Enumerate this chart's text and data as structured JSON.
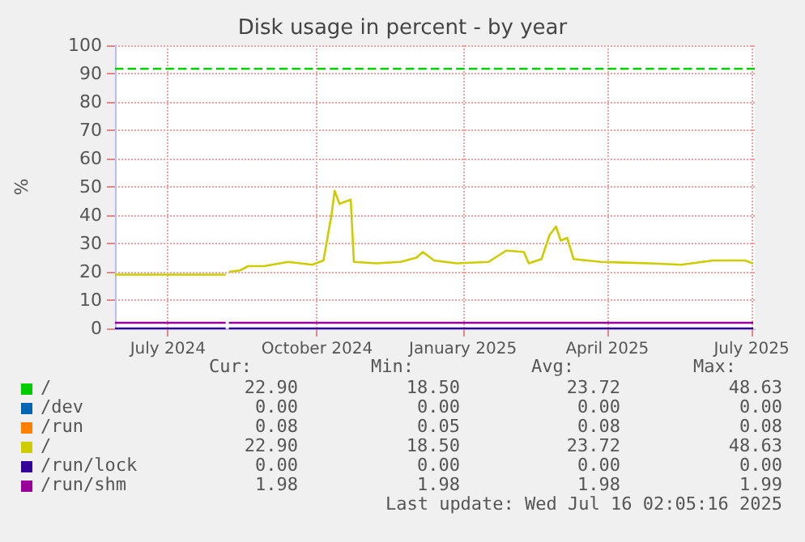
{
  "chart_data": {
    "type": "line",
    "title": "Disk usage in percent - by year",
    "ylabel": "%",
    "x": [
      "2024-06-12",
      "2024-08-20",
      "2024-08-21",
      "2024-08-22",
      "2024-08-29",
      "2024-09-03",
      "2024-09-13",
      "2024-09-28",
      "2024-10-13",
      "2024-10-20",
      "2024-10-25",
      "2024-10-27",
      "2024-10-30",
      "2024-11-06",
      "2024-11-08",
      "2024-11-22",
      "2024-12-07",
      "2024-12-17",
      "2024-12-21",
      "2024-12-28",
      "2025-01-11",
      "2025-01-31",
      "2025-02-11",
      "2025-02-22",
      "2025-02-25",
      "2025-03-05",
      "2025-03-10",
      "2025-03-14",
      "2025-03-17",
      "2025-03-21",
      "2025-03-25",
      "2025-04-11",
      "2025-05-11",
      "2025-05-31",
      "2025-06-20",
      "2025-07-10",
      "2025-07-15"
    ],
    "series": [
      {
        "name": "/",
        "color": "#00cc00",
        "values": [
          null,
          null,
          null,
          null,
          null,
          null,
          null,
          null,
          null,
          null,
          null,
          null,
          null,
          null,
          null,
          null,
          null,
          null,
          null,
          null,
          null,
          null,
          null,
          null,
          null,
          null,
          null,
          null,
          null,
          null,
          null,
          null,
          null,
          null,
          null,
          null,
          null
        ]
      },
      {
        "name": "/dev",
        "color": "#0066b3",
        "values": [
          null,
          null,
          null,
          null,
          null,
          null,
          null,
          null,
          null,
          null,
          null,
          null,
          null,
          null,
          null,
          null,
          null,
          null,
          null,
          null,
          null,
          null,
          null,
          null,
          null,
          null,
          null,
          null,
          null,
          null,
          null,
          null,
          null,
          null,
          null,
          null,
          null
        ]
      },
      {
        "name": "/run",
        "color": "#ff8000",
        "values": [
          null,
          null,
          null,
          null,
          null,
          null,
          null,
          null,
          null,
          null,
          null,
          null,
          null,
          null,
          null,
          null,
          null,
          null,
          null,
          null,
          null,
          null,
          null,
          null,
          null,
          null,
          null,
          null,
          null,
          null,
          null,
          null,
          null,
          null,
          null,
          null,
          null
        ]
      },
      {
        "name": "/",
        "color": "#cccc00",
        "values": [
          19,
          19,
          null,
          20,
          20.5,
          22,
          22,
          23.5,
          22.5,
          24,
          40,
          48.6,
          44,
          45.5,
          23.5,
          23,
          23.5,
          25,
          27,
          24,
          23,
          23.5,
          27.5,
          27,
          23,
          24.5,
          33,
          36,
          31,
          32,
          24.5,
          23.5,
          23,
          22.5,
          24,
          24,
          22.9
        ]
      },
      {
        "name": "/run/lock",
        "color": "#330099",
        "x": [
          "2024-06-12",
          "2024-08-20",
          "2024-08-21",
          "2024-08-22",
          "2025-07-15"
        ],
        "values": [
          0,
          0,
          null,
          0,
          0
        ]
      },
      {
        "name": "/run/shm",
        "color": "#990099",
        "x": [
          "2024-06-12",
          "2024-08-20",
          "2024-08-21",
          "2024-08-22",
          "2025-07-15"
        ],
        "values": [
          2,
          2,
          null,
          2,
          2
        ]
      }
    ],
    "xlim": [
      "2024-06-12",
      "2025-07-16"
    ],
    "xticks": [
      {
        "value": "2024-07-15",
        "label": "July 2024"
      },
      {
        "value": "2024-10-16",
        "label": "October 2024"
      },
      {
        "value": "2025-01-15",
        "label": "January 2025"
      },
      {
        "value": "2025-04-15",
        "label": "April 2025"
      },
      {
        "value": "2025-07-14",
        "label": "July 2025"
      }
    ],
    "ylim": [
      0,
      100
    ],
    "yticks": [
      0,
      10,
      20,
      30,
      40,
      50,
      60,
      70,
      80,
      90,
      100
    ],
    "ref_lines": [
      {
        "axis": "y",
        "value": 92,
        "color": "#00cc00",
        "line_style": "dashed"
      }
    ],
    "grid": true,
    "legend": "bottom",
    "marker": "none",
    "line_style": "solid",
    "annotations": [
      "Cur:",
      "Min:",
      "Avg:",
      "Max:",
      "22.90",
      "18.50",
      "23.72",
      "48.63",
      "0.00",
      "0.00",
      "0.00",
      "0.00",
      "0.08",
      "0.05",
      "0.08",
      "0.08",
      "22.90",
      "18.50",
      "23.72",
      "48.63",
      "0.00",
      "0.00",
      "0.00",
      "0.00",
      "1.98",
      "1.98",
      "1.98",
      "1.99",
      "Last update: Wed Jul 16 02:05:16 2025"
    ]
  }
}
